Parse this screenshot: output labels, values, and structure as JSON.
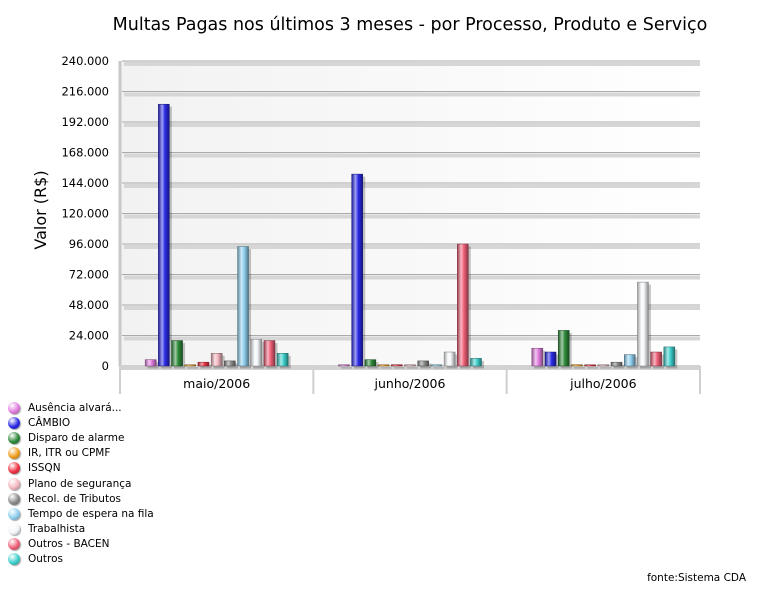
{
  "chart_data": {
    "type": "bar",
    "title": "Multas Pagas nos últimos 3 meses - por Processo, Produto e Serviço",
    "ylabel": "Valor (R$)",
    "xlabel": "",
    "ylim": [
      0,
      240000
    ],
    "yticks": [
      0,
      24000,
      48000,
      72000,
      96000,
      120000,
      144000,
      168000,
      192000,
      216000,
      240000
    ],
    "ytick_labels": [
      "0",
      "24.000",
      "48.000",
      "72.000",
      "96.000",
      "120.000",
      "144.000",
      "168.000",
      "192.000",
      "216.000",
      "240.000"
    ],
    "grid": true,
    "legend_position": "bottom-left",
    "categories": [
      "maio/2006",
      "junho/2006",
      "julho/2006"
    ],
    "series": [
      {
        "name": "Ausência alvará...",
        "color": "#e37ee0",
        "values": [
          5000,
          0,
          14000
        ]
      },
      {
        "name": "CÂMBIO",
        "color": "#2a2ae6",
        "values": [
          206000,
          151000,
          11000
        ]
      },
      {
        "name": "Disparo de alarme",
        "color": "#2e8b3a",
        "values": [
          20000,
          5000,
          28000
        ]
      },
      {
        "name": "IR, ITR ou CPMF",
        "color": "#f0a020",
        "values": [
          0,
          0,
          1000
        ]
      },
      {
        "name": "ISSQN",
        "color": "#ee3344",
        "values": [
          3000,
          1000,
          0
        ]
      },
      {
        "name": "Plano de segurança",
        "color": "#f4b8c0",
        "values": [
          10000,
          0,
          0
        ]
      },
      {
        "name": "Recol. de Tributos",
        "color": "#8c8c8c",
        "values": [
          4000,
          4000,
          3000
        ]
      },
      {
        "name": "Tempo de espera na fila",
        "color": "#8fd0f0",
        "values": [
          94000,
          0,
          9000
        ]
      },
      {
        "name": "Trabalhista",
        "color": "#f4f8fb",
        "values": [
          21000,
          11000,
          66000
        ]
      },
      {
        "name": "Outros - BACEN",
        "color": "#f06078",
        "values": [
          20000,
          96000,
          11000
        ]
      },
      {
        "name": "Outros",
        "color": "#3ed0cc",
        "values": [
          10000,
          6000,
          15000
        ]
      }
    ]
  },
  "legend_items": [
    {
      "label": "Ausência alvará...",
      "color": "#e37ee0"
    },
    {
      "label": "CÂMBIO",
      "color": "#2a2ae6"
    },
    {
      "label": "Disparo de alarme",
      "color": "#2e8b3a"
    },
    {
      "label": "IR, ITR ou CPMF",
      "color": "#f0a020"
    },
    {
      "label": "ISSQN",
      "color": "#ee3344"
    },
    {
      "label": "Plano de segurança",
      "color": "#f4b8c0"
    },
    {
      "label": "Recol. de Tributos",
      "color": "#8c8c8c"
    },
    {
      "label": "Tempo de espera na fila",
      "color": "#8fd0f0"
    },
    {
      "label": "Trabalhista",
      "color": "#f4f8fb"
    },
    {
      "label": "Outros - BACEN",
      "color": "#f06078"
    },
    {
      "label": "Outros",
      "color": "#3ed0cc"
    }
  ],
  "source": "fonte:Sistema CDA"
}
